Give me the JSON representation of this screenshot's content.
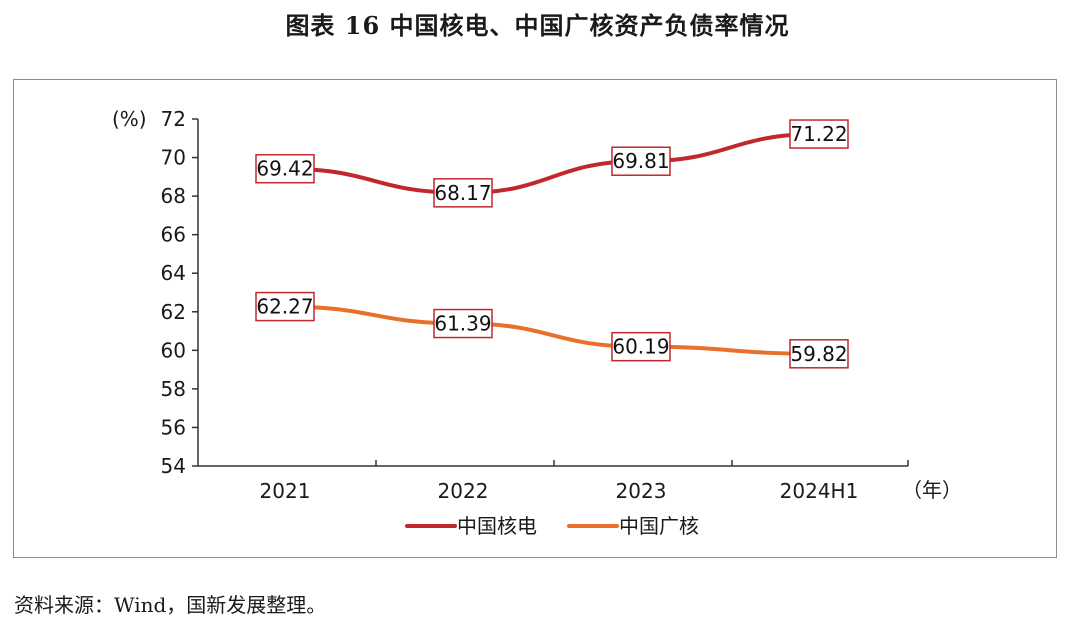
{
  "figure": {
    "title": "图表 16  中国核电、中国广核资产负债率情况",
    "source": "资料来源：Wind，国新发展整理。"
  },
  "chart_data": {
    "type": "line",
    "categories": [
      "2021",
      "2022",
      "2023",
      "2024H1"
    ],
    "series": [
      {
        "name": "中国核电",
        "values": [
          69.42,
          68.17,
          69.81,
          71.22
        ],
        "color": "#c0282d"
      },
      {
        "name": "中国广核",
        "values": [
          62.27,
          61.39,
          60.19,
          59.82
        ],
        "color": "#e8702a"
      }
    ],
    "ylim": [
      54,
      72
    ],
    "yticks": [
      54,
      56,
      58,
      60,
      62,
      64,
      66,
      68,
      70,
      72
    ],
    "ylabel": "(%)",
    "xlabel": "（年）",
    "legend": "bottom",
    "label_border_color": "#c0282d",
    "grid": false
  }
}
